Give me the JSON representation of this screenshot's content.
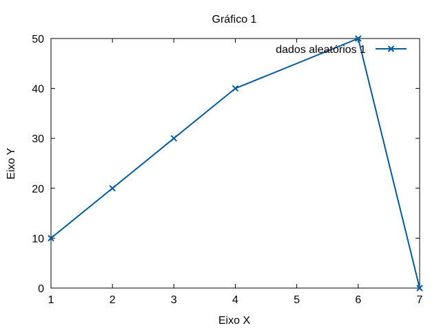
{
  "chart_data": {
    "type": "line",
    "title": "Gráfico 1",
    "xlabel": "Eixo X",
    "ylabel": "Eixo Y",
    "xlim": [
      1,
      7
    ],
    "ylim": [
      0,
      50
    ],
    "xticks": [
      "1",
      "2",
      "3",
      "4",
      "5",
      "6",
      "7"
    ],
    "yticks": [
      "0",
      "10",
      "20",
      "30",
      "40",
      "50"
    ],
    "grid": false,
    "legend_position": "top-right",
    "series": [
      {
        "name": "dados aleatórios 1",
        "color": "#005a9c",
        "marker": "x",
        "x": [
          1,
          2,
          3,
          4,
          6,
          7
        ],
        "y": [
          10,
          20,
          30,
          40,
          50,
          0
        ]
      }
    ]
  }
}
